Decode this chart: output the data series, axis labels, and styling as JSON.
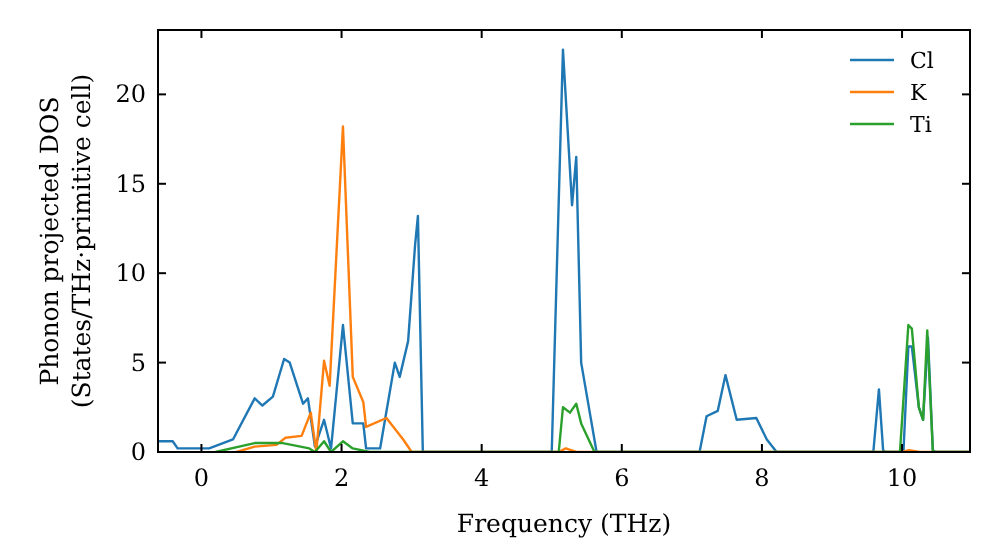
{
  "chart_data": {
    "type": "line",
    "xlabel": "Frequency (THz)",
    "ylabel": "Phonon projected DOS\n(States/THz·primitive cell)",
    "xlim": [
      -0.62,
      10.97
    ],
    "ylim": [
      0,
      23.6
    ],
    "xticks": [
      0,
      2,
      4,
      6,
      8,
      10
    ],
    "yticks": [
      0,
      5,
      10,
      15,
      20
    ],
    "grid": false,
    "legend": "top right",
    "marker": "none",
    "line_style": "solid",
    "series": [
      {
        "name": "Cl",
        "color": "#1f77b4",
        "x": [
          -0.62,
          -0.41,
          -0.34,
          0.11,
          0.45,
          0.76,
          0.87,
          1.02,
          1.18,
          1.26,
          1.45,
          1.52,
          1.62,
          1.75,
          1.85,
          2.02,
          2.16,
          2.31,
          2.35,
          2.55,
          2.76,
          2.83,
          2.95,
          3.05,
          3.09,
          3.16,
          5.0,
          5.16,
          5.29,
          5.35,
          5.42,
          5.64,
          7.11,
          7.21,
          7.37,
          7.48,
          7.64,
          7.92,
          8.07,
          8.21,
          9.59,
          9.67,
          9.73,
          9.76,
          10.02,
          10.09,
          10.14,
          10.24,
          10.3,
          10.37,
          10.44,
          10.48,
          10.97
        ],
        "values": [
          0.6,
          0.6,
          0.2,
          0.2,
          0.7,
          3,
          2.6,
          3.1,
          5.2,
          5,
          2.7,
          3.0,
          0.3,
          1.8,
          0.2,
          7.1,
          1.6,
          1.6,
          0.2,
          0.2,
          5,
          4.2,
          6.2,
          11.6,
          13.2,
          0,
          0,
          22.5,
          13.8,
          16.5,
          5,
          0,
          0,
          2.0,
          2.3,
          4.3,
          1.8,
          1.9,
          0.7,
          0,
          0,
          3.5,
          0.1,
          0,
          0,
          5.9,
          5.9,
          2.5,
          1.8,
          6.4,
          0.1,
          0,
          0
        ]
      },
      {
        "name": "K",
        "color": "#ff7f0e",
        "x": [
          0.5,
          0.76,
          1.07,
          1.2,
          1.43,
          1.56,
          1.64,
          1.75,
          1.83,
          2.02,
          2.16,
          2.31,
          2.35,
          2.64,
          2.88,
          3.0,
          5.1,
          5.2,
          5.35,
          10.0,
          10.1,
          10.25,
          10.97
        ],
        "values": [
          0,
          0.3,
          0.4,
          0.8,
          0.9,
          2.2,
          0,
          5.1,
          3.7,
          18.2,
          4.2,
          2.8,
          1.4,
          1.9,
          0.7,
          0,
          0,
          0.2,
          0,
          0,
          0.1,
          0,
          0
        ]
      },
      {
        "name": "Ti",
        "color": "#2ca02c",
        "x": [
          0.2,
          0.76,
          1.16,
          1.54,
          1.62,
          1.75,
          1.85,
          2.02,
          2.16,
          2.4,
          5.1,
          5.16,
          5.26,
          5.35,
          5.42,
          5.61,
          9.97,
          10.09,
          10.14,
          10.24,
          10.3,
          10.36,
          10.44,
          10.97
        ],
        "values": [
          0,
          0.5,
          0.5,
          0.2,
          0,
          0.6,
          0,
          0.6,
          0.2,
          0,
          0,
          2.5,
          2.2,
          2.7,
          1.6,
          0,
          0,
          7.1,
          6.9,
          2.5,
          1.8,
          6.8,
          0,
          0
        ]
      }
    ]
  }
}
